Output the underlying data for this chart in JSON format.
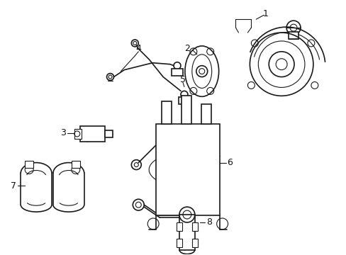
{
  "background_color": "#ffffff",
  "line_color": "#1a1a1a",
  "label_color": "#111111",
  "figsize": [
    4.89,
    3.6
  ],
  "dpi": 100,
  "xlim": [
    0,
    489
  ],
  "ylim": [
    0,
    360
  ]
}
